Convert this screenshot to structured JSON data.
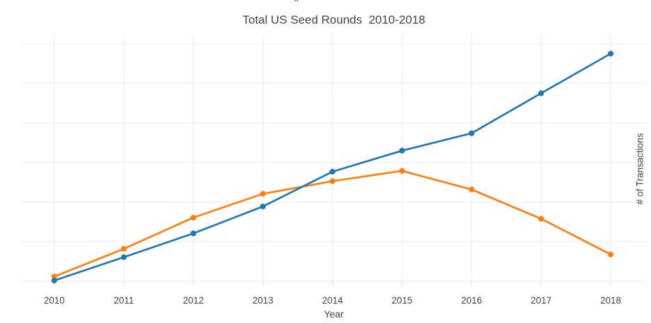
{
  "page": {
    "cropped_text_fragment": "x"
  },
  "chart_data": {
    "type": "line",
    "title": "Total US Seed Rounds  2010-2018",
    "xlabel": "Year",
    "ylabel": "# of Transactions",
    "x": [
      2010,
      2011,
      2012,
      2013,
      2014,
      2015,
      2016,
      2017,
      2018
    ],
    "x_tick_labels": [
      "2010",
      "2011",
      "2012",
      "2013",
      "2014",
      "2015",
      "2016",
      "2017",
      "2018"
    ],
    "series": [
      {
        "id": "orange-series",
        "color": "#ff7f0e",
        "values": [
          0.12,
          0.82,
          1.61,
          2.21,
          2.53,
          2.79,
          2.32,
          1.58,
          0.68
        ]
      },
      {
        "id": "blue-series",
        "color": "#1f77b4",
        "values": [
          0.02,
          0.61,
          1.21,
          1.89,
          2.77,
          3.3,
          3.74,
          4.75,
          5.75
        ]
      }
    ],
    "y_units_note": "no y-axis tick labels visible; values measured in horizontal-gridline units (1 unit = 1 gridline spacing, 0 = bottom axis line)",
    "ylim": [
      0,
      6.25
    ],
    "y_gridline_values": [
      0,
      1,
      2,
      3,
      4,
      5,
      6
    ],
    "grid": true,
    "legend": "none",
    "markers": true,
    "background": "#ffffff",
    "grid_color": "#e8e8e8",
    "tick_color": "#d4d4d4",
    "text_color": "#444444"
  }
}
